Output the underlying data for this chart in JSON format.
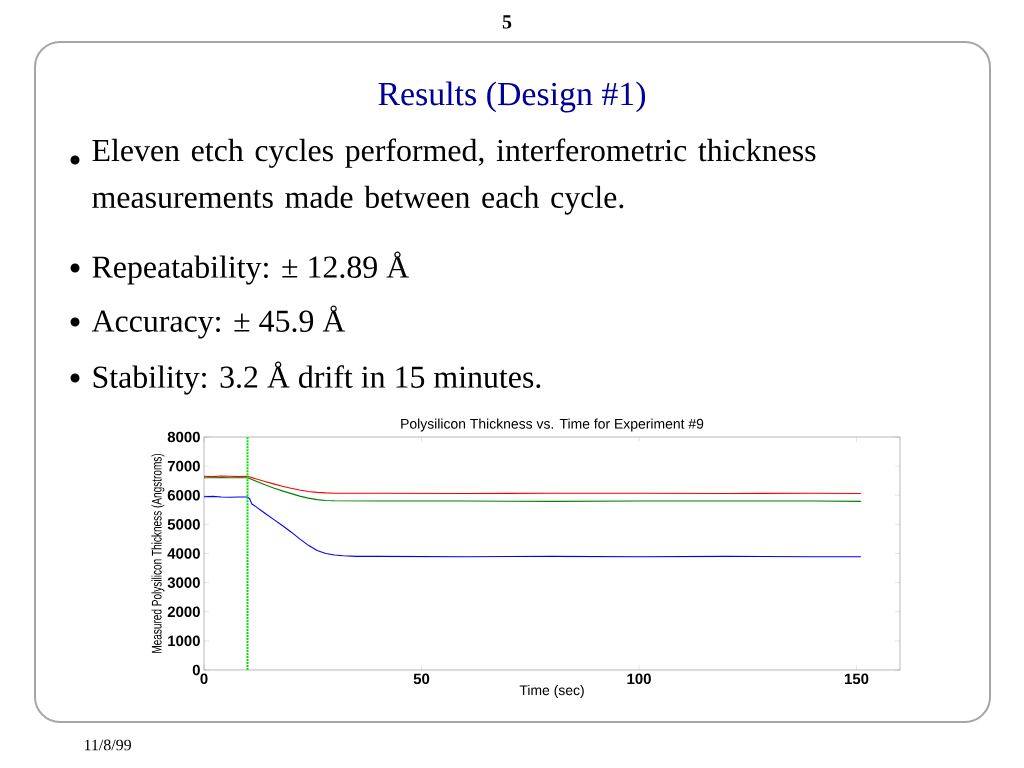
{
  "chart_data": {
    "type": "line",
    "title": "Polysilicon Thickness vs. Time for Experiment #9",
    "xlabel": "Time (sec)",
    "ylabel": "Measured Polysilicon Thickness (Angstroms)",
    "annotations": [
      "5",
      "Results (Design #1)",
      "Eleven etch cycles performed, interferometric thickness measurements made between each cycle.",
      "Repeatability: ± 12.89 Å",
      "Accuracy: ± 45.9 Å",
      "Stability: 3.2 Å drift in 15 minutes.",
      "11/8/99"
    ],
    "xlim": [
      0,
      160
    ],
    "ylim": [
      0,
      8000
    ],
    "xticks": [
      0,
      50,
      100,
      150
    ],
    "yticks": [
      0,
      1000,
      2000,
      3000,
      4000,
      5000,
      6000,
      7000,
      8000
    ],
    "grid": false,
    "legend": false,
    "marker": "none",
    "line_style": "solid",
    "ref_lines": [
      {
        "axis": "x",
        "value": 10,
        "color": "#00e000",
        "line_style": "dotted"
      }
    ],
    "series": [
      {
        "color": "#ff0000",
        "x": [
          0,
          2,
          4,
          6,
          8,
          10,
          12,
          14,
          16,
          18,
          20,
          22,
          24,
          26,
          28,
          30,
          40,
          60,
          80,
          100,
          120,
          140,
          151
        ],
        "values": [
          6650,
          6640,
          6660,
          6650,
          6640,
          6650,
          6560,
          6470,
          6390,
          6310,
          6240,
          6180,
          6130,
          6100,
          6080,
          6070,
          6070,
          6060,
          6070,
          6070,
          6060,
          6070,
          6060
        ]
      },
      {
        "color": "#008000",
        "x": [
          0,
          2,
          4,
          6,
          8,
          10,
          12,
          14,
          16,
          18,
          20,
          22,
          24,
          26,
          28,
          30,
          40,
          60,
          80,
          100,
          120,
          140,
          151
        ],
        "values": [
          6600,
          6600,
          6610,
          6600,
          6600,
          6600,
          6480,
          6360,
          6250,
          6150,
          6060,
          5970,
          5900,
          5850,
          5820,
          5810,
          5800,
          5800,
          5790,
          5800,
          5800,
          5800,
          5790
        ]
      },
      {
        "color": "#0000ff",
        "x": [
          0,
          2,
          4,
          6,
          8,
          10,
          10.5,
          11,
          12,
          14,
          16,
          18,
          20,
          22,
          24,
          26,
          28,
          30,
          32,
          35,
          40,
          60,
          80,
          100,
          120,
          140,
          151
        ],
        "values": [
          5950,
          5960,
          5940,
          5930,
          5940,
          5940,
          5880,
          5700,
          5600,
          5380,
          5170,
          4960,
          4740,
          4500,
          4280,
          4100,
          4000,
          3950,
          3920,
          3900,
          3900,
          3890,
          3900,
          3890,
          3900,
          3890,
          3890
        ]
      }
    ]
  }
}
